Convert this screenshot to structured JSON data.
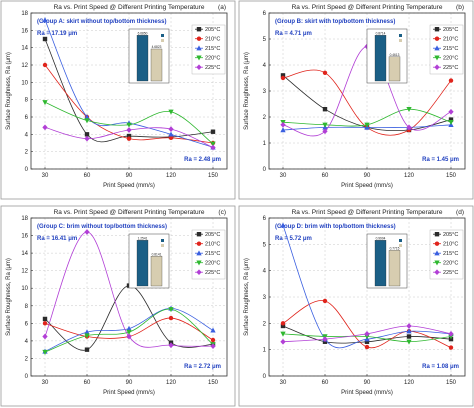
{
  "chart_data": [
    {
      "type": "line",
      "panel_letter": "(a)",
      "title": "Ra vs. Print Speed @ Different Printing Temperature",
      "group_label": "(Group A: skirt without top/bottom thickness)",
      "xlabel": "Print Speed (mm/s)",
      "ylabel": "Surface Roughness, Ra (μm)",
      "x": [
        30,
        60,
        90,
        120,
        150
      ],
      "xlim": [
        20,
        160
      ],
      "ylim": [
        0,
        18
      ],
      "yticks": [
        0,
        2,
        4,
        6,
        8,
        10,
        12,
        14,
        16,
        18
      ],
      "annotation_max": "Ra = 17.19 μm",
      "annotation_min": "Ra = 2.48 μm",
      "series": [
        {
          "name": "205°C",
          "values": [
            15.0,
            4.0,
            3.8,
            3.7,
            4.3
          ]
        },
        {
          "name": "210°C",
          "values": [
            12.0,
            6.0,
            3.5,
            3.6,
            3.0
          ]
        },
        {
          "name": "215°C",
          "values": [
            17.19,
            6.0,
            5.3,
            4.0,
            2.5
          ]
        },
        {
          "name": "220°C",
          "values": [
            7.7,
            5.6,
            5.1,
            6.6,
            2.9
          ]
        },
        {
          "name": "225°C",
          "values": [
            4.8,
            3.5,
            4.5,
            4.6,
            2.48
          ]
        }
      ],
      "inset_values": [
        "6.6850",
        "4.6823"
      ]
    },
    {
      "type": "line",
      "panel_letter": "(b)",
      "title": "Ra vs. Print Speed @ Different Printing Temperature",
      "group_label": "(Group B: skirt with top/bottom thickness)",
      "xlabel": "Print Speed (mm/s)",
      "ylabel": "Surface Roughness, Ra (μm)",
      "x": [
        30,
        60,
        90,
        120,
        150
      ],
      "xlim": [
        20,
        160
      ],
      "ylim": [
        0,
        6
      ],
      "yticks": [
        0,
        1,
        2,
        3,
        4,
        5,
        6
      ],
      "annotation_max": "Ra = 4.71 μm",
      "annotation_min": "Ra = 1.45 μm",
      "series": [
        {
          "name": "205°C",
          "values": [
            3.6,
            2.3,
            1.6,
            1.5,
            1.9
          ]
        },
        {
          "name": "210°C",
          "values": [
            3.5,
            3.7,
            1.6,
            1.5,
            3.4
          ]
        },
        {
          "name": "215°C",
          "values": [
            1.5,
            1.6,
            1.6,
            1.6,
            1.7
          ]
        },
        {
          "name": "220°C",
          "values": [
            1.8,
            1.7,
            1.7,
            2.3,
            1.8
          ]
        },
        {
          "name": "225°C",
          "values": [
            1.7,
            1.45,
            4.71,
            1.6,
            2.2
          ]
        }
      ],
      "inset_values": [
        "0.8714",
        "0.4613"
      ]
    },
    {
      "type": "line",
      "panel_letter": "(c)",
      "title": "Ra vs. Print Speed @ Different Printing Temperature",
      "group_label": "(Group C: brim without top/bottom thickness)",
      "xlabel": "Print Speed (mm/s)",
      "ylabel": "Surface Roughness, Ra (μm)",
      "x": [
        30,
        60,
        90,
        120,
        150
      ],
      "xlim": [
        20,
        160
      ],
      "ylim": [
        0,
        18
      ],
      "yticks": [
        0,
        2,
        4,
        6,
        8,
        10,
        12,
        14,
        16,
        18
      ],
      "annotation_max": "Ra = 16.41 μm",
      "annotation_min": "Ra = 2.72 μm",
      "series": [
        {
          "name": "205°C",
          "values": [
            6.5,
            3.0,
            10.3,
            3.8,
            3.6
          ]
        },
        {
          "name": "210°C",
          "values": [
            6.0,
            4.5,
            4.5,
            6.6,
            4.1
          ]
        },
        {
          "name": "215°C",
          "values": [
            2.8,
            5.0,
            5.4,
            7.7,
            5.2
          ]
        },
        {
          "name": "220°C",
          "values": [
            2.72,
            4.6,
            5.0,
            7.6,
            3.6
          ]
        },
        {
          "name": "225°C",
          "values": [
            4.5,
            16.41,
            4.5,
            3.5,
            3.4
          ]
        }
      ],
      "inset_values": [
        "1.2541",
        "0.8141"
      ]
    },
    {
      "type": "line",
      "panel_letter": "(d)",
      "title": "Ra vs. Print Speed @ Different Printing Temperature",
      "group_label": "(Group D: brim with top/bottom thickness)",
      "xlabel": "Print Speed (mm/s)",
      "ylabel": "Surface Roughness, Ra (μm)",
      "x": [
        30,
        60,
        90,
        120,
        150
      ],
      "xlim": [
        20,
        160
      ],
      "ylim": [
        0,
        6
      ],
      "yticks": [
        0,
        1,
        2,
        3,
        4,
        5,
        6
      ],
      "annotation_max": "Ra = 5.72 μm",
      "annotation_min": "Ra = 1.08 μm",
      "series": [
        {
          "name": "205°C",
          "values": [
            1.9,
            1.3,
            1.3,
            1.5,
            1.4
          ]
        },
        {
          "name": "210°C",
          "values": [
            2.0,
            2.85,
            1.1,
            1.7,
            1.08
          ]
        },
        {
          "name": "215°C",
          "values": [
            5.72,
            1.4,
            1.4,
            1.7,
            1.6
          ]
        },
        {
          "name": "220°C",
          "values": [
            1.6,
            1.5,
            1.5,
            1.3,
            1.5
          ]
        },
        {
          "name": "225°C",
          "values": [
            1.3,
            1.4,
            1.6,
            1.9,
            1.6
          ]
        }
      ],
      "inset_values": [
        "0.9904",
        "0.7715"
      ]
    }
  ],
  "series_colors": [
    "#2b2b2b",
    "#e0241c",
    "#3a5fe0",
    "#2fb830",
    "#b23fd6"
  ],
  "series_markers": [
    "square",
    "circle",
    "triangle-up",
    "triangle-down",
    "diamond"
  ],
  "inset_colors": [
    "#1b5f86",
    "#d7cdb0"
  ]
}
